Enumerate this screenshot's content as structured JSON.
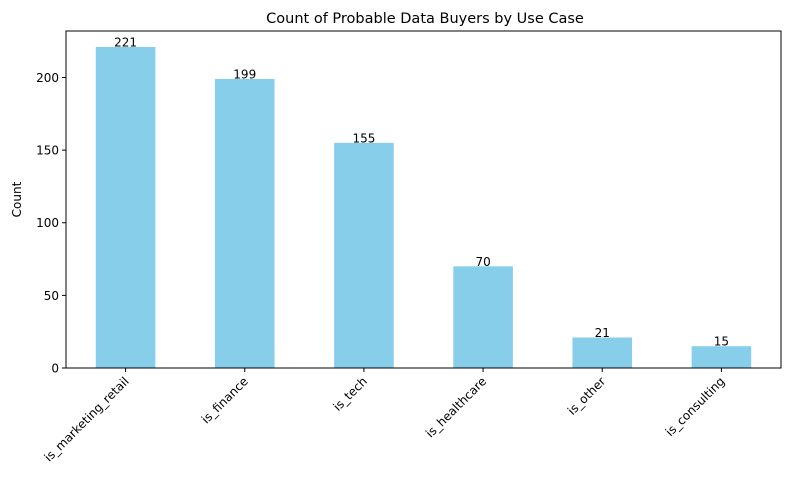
{
  "chart_data": {
    "type": "bar",
    "title": "Count of Probable Data Buyers by Use Case",
    "xlabel": "",
    "ylabel": "Count",
    "categories": [
      "is_marketing_retail",
      "is_finance",
      "is_tech",
      "is_healthcare",
      "is_other",
      "is_consulting"
    ],
    "values": [
      221,
      199,
      155,
      70,
      21,
      15
    ],
    "data_labels": [
      "221",
      "199",
      "155",
      "70",
      "21",
      "15"
    ],
    "ylim": [
      0,
      232
    ],
    "yticks": [
      0,
      50,
      100,
      150,
      200
    ],
    "ytick_labels": [
      "0",
      "50",
      "100",
      "150",
      "200"
    ],
    "bar_color": "#87ceeb",
    "grid": false,
    "legend": "none"
  }
}
